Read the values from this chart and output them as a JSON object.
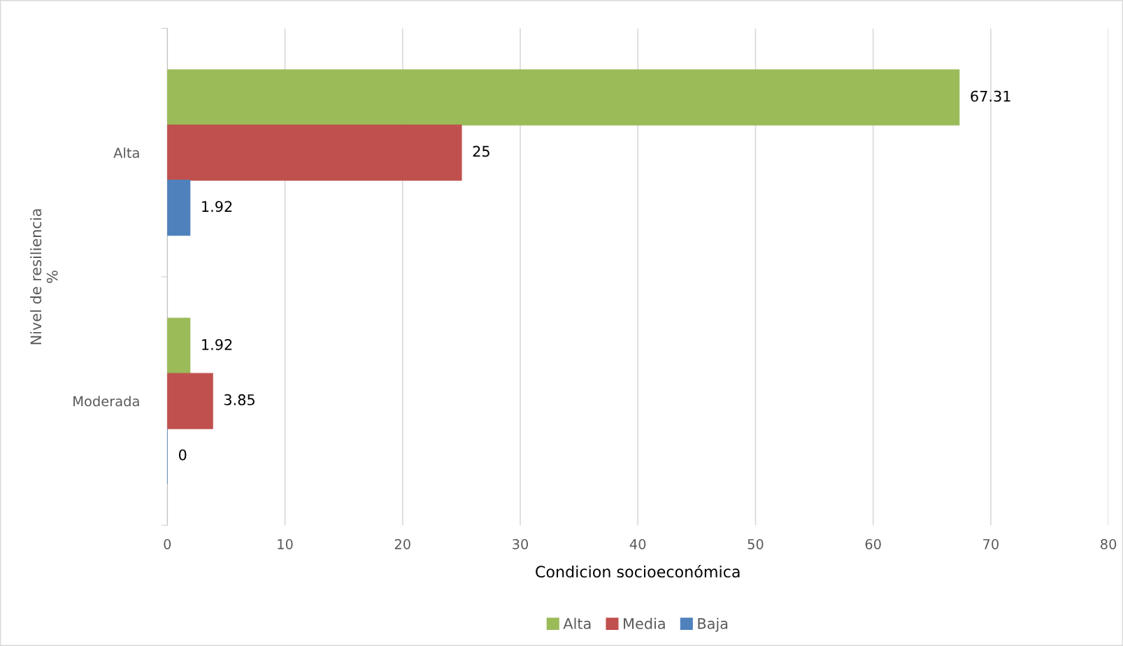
{
  "chart_data": {
    "type": "bar",
    "orientation": "horizontal",
    "categories": [
      "Alta",
      "Moderada"
    ],
    "series": [
      {
        "name": "Alta",
        "color": "#9bbb59",
        "values": [
          67.31,
          1.92
        ],
        "value_labels": [
          "67.31",
          "1.92"
        ]
      },
      {
        "name": "Media",
        "color": "#c0504d",
        "values": [
          25,
          3.85
        ],
        "value_labels": [
          "25",
          "3.85"
        ]
      },
      {
        "name": "Baja",
        "color": "#4f81bd",
        "values": [
          1.92,
          0
        ],
        "value_labels": [
          "1.92",
          "0"
        ]
      }
    ],
    "xlabel": "Condicion socioeconómica",
    "ylabel": "Nivel de resiliencia\n%",
    "xlim": [
      0,
      80
    ],
    "xticks": [
      0,
      10,
      20,
      30,
      40,
      50,
      60,
      70,
      80
    ],
    "grid": "x",
    "legend": "bottom"
  }
}
